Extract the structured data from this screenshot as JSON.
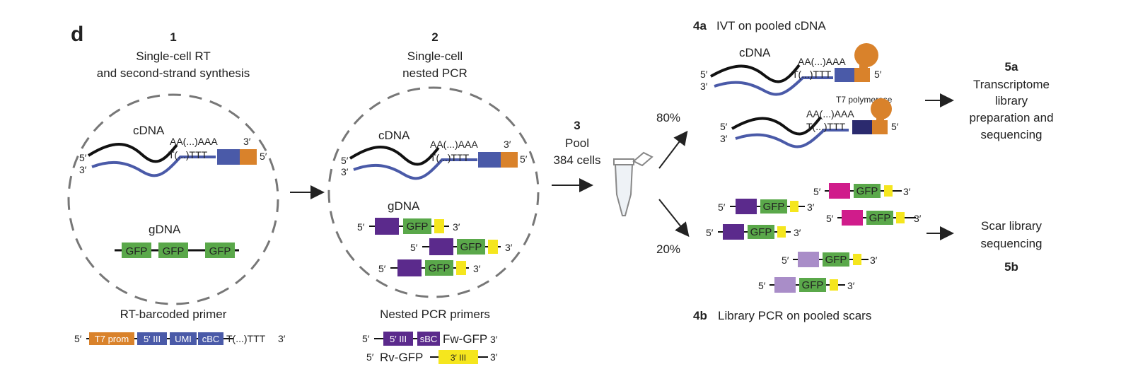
{
  "panel_letter": "d",
  "steps": {
    "s1": {
      "num": "1",
      "title_line1": "Single-cell RT",
      "title_line2": "and second-strand synthesis"
    },
    "s2": {
      "num": "2",
      "title_line1": "Single-cell",
      "title_line2": "nested PCR"
    },
    "s3": {
      "num": "3",
      "line1": "Pool",
      "line2": "384 cells"
    },
    "s4a": {
      "num": "4a",
      "label": "IVT on pooled cDNA"
    },
    "s4b": {
      "num": "4b",
      "label": "Library PCR on pooled scars"
    },
    "s5a": {
      "num": "5a",
      "line1": "Transcriptome",
      "line2": "library",
      "line3": "preparation and",
      "line4": "sequencing"
    },
    "s5b": {
      "num": "5b",
      "line1": "Scar library",
      "line2": "sequencing"
    }
  },
  "labels": {
    "cdna": "cDNA",
    "gdna": "gDNA",
    "five_prime": "5′",
    "three_prime": "3′",
    "polyA": "AA(...)AAA",
    "polyT": "T(...)TTT",
    "gfp": "GFP",
    "t7_polymerase": "T7 polymerase",
    "pct_80": "80%",
    "pct_20": "20%"
  },
  "primers": {
    "rt_title": "RT-barcoded primer",
    "rt_segments": [
      "T7 prom",
      "5′ III",
      "UMI",
      "cBC"
    ],
    "nested_title": "Nested PCR primers",
    "fw_segments": [
      "5′ III",
      "sBC"
    ],
    "fw_label": "Fw-GFP",
    "rv_label": "Rv-GFP",
    "rv_segment": "3′ III"
  },
  "colors": {
    "t7_orange": "#d9822b",
    "blue": "#4a5aa8",
    "dark_navy": "#2b2a6e",
    "purple": "#5b2a8c",
    "magenta": "#d01c8b",
    "lavender": "#a98dc8",
    "green": "#5aa84a",
    "yellow": "#f5e61e",
    "strand_blue": "#4a5aa8"
  }
}
